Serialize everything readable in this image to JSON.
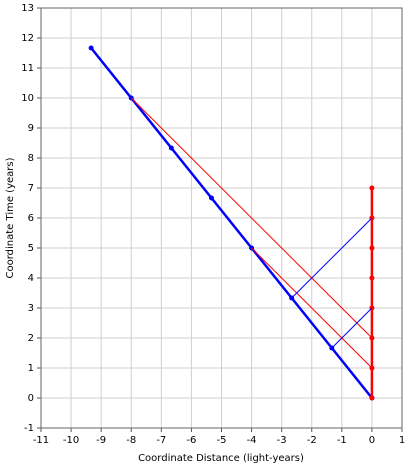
{
  "chart_data": {
    "type": "line",
    "xlabel": "Coordinate Distance (light-years)",
    "ylabel": "Coordinate Time (years)",
    "xlim": [
      -11,
      1
    ],
    "ylim": [
      -1,
      13
    ],
    "xticks": [
      -11,
      -10,
      -9,
      -8,
      -7,
      -6,
      -5,
      -4,
      -3,
      -2,
      -1,
      0,
      1
    ],
    "yticks": [
      -1,
      0,
      1,
      2,
      3,
      4,
      5,
      6,
      7,
      8,
      9,
      10,
      11,
      12,
      13
    ],
    "grid": true,
    "series": [
      {
        "color": "#0000ff",
        "markers": true,
        "x": [
          0,
          -1.333,
          -2.667,
          -4,
          -5.333,
          -6.667,
          -8,
          -9.333
        ],
        "values": [
          0,
          1.667,
          3.333,
          5,
          6.667,
          8.333,
          10,
          11.667
        ]
      },
      {
        "color": "#ff0000",
        "markers": true,
        "x": [
          0,
          0,
          0,
          0,
          0,
          0,
          0,
          0
        ],
        "values": [
          0,
          1,
          2,
          3,
          4,
          5,
          6,
          7
        ]
      },
      {
        "color": "#ff0000",
        "markers": false,
        "x": [
          -8,
          0
        ],
        "values": [
          10,
          2
        ]
      },
      {
        "color": "#ff0000",
        "markers": false,
        "x": [
          -4,
          0
        ],
        "values": [
          5,
          1
        ]
      },
      {
        "color": "#0000ff",
        "markers": false,
        "x": [
          -1.333,
          0
        ],
        "values": [
          1.667,
          3
        ]
      },
      {
        "color": "#0000ff",
        "markers": false,
        "x": [
          -2.667,
          0
        ],
        "values": [
          3.333,
          6
        ]
      }
    ]
  }
}
